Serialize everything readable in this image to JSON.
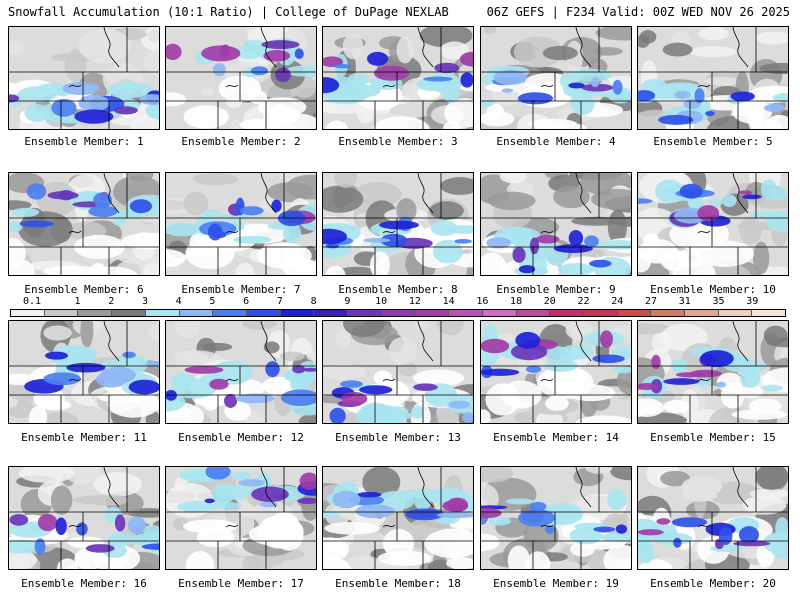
{
  "header": {
    "left_title": "Snowfall Accumulation (10:1 Ratio) | College of DuPage NEXLAB",
    "right_title": "06Z GEFS | F234 Valid: 00Z WED NOV 26 2025"
  },
  "colorbar": {
    "labels": [
      "0.1",
      "1",
      "2",
      "3",
      "4",
      "5",
      "6",
      "7",
      "8",
      "9",
      "10",
      "12",
      "14",
      "16",
      "18",
      "20",
      "22",
      "24",
      "27",
      "31",
      "35",
      "39"
    ],
    "colors": [
      "#f2f2f2",
      "#c9c9c9",
      "#9a9a9a",
      "#7a7a7a",
      "#a8e4ef",
      "#8fb7f5",
      "#4b7ff0",
      "#2f50e8",
      "#1d22d6",
      "#3a1fb8",
      "#6a35b8",
      "#8f3ab0",
      "#a13ca8",
      "#bd52b5",
      "#d36ac4",
      "#c24a9a",
      "#c0306f",
      "#c8325a",
      "#cf4a4a",
      "#d2796a",
      "#e0a994",
      "#f0cfbe",
      "#f9e4d6"
    ]
  },
  "panels": [
    {
      "label": "Ensemble Member: 1",
      "member": 1
    },
    {
      "label": "Ensemble Member: 2",
      "member": 2
    },
    {
      "label": "Ensemble Member: 3",
      "member": 3
    },
    {
      "label": "Ensemble Member: 4",
      "member": 4
    },
    {
      "label": "Ensemble Member: 5",
      "member": 5
    },
    {
      "label": "Ensemble Member: 6",
      "member": 6
    },
    {
      "label": "Ensemble Member: 7",
      "member": 7
    },
    {
      "label": "Ensemble Member: 8",
      "member": 8
    },
    {
      "label": "Ensemble Member: 9",
      "member": 9
    },
    {
      "label": "Ensemble Member: 10",
      "member": 10
    },
    {
      "label": "Ensemble Member: 11",
      "member": 11
    },
    {
      "label": "Ensemble Member: 12",
      "member": 12
    },
    {
      "label": "Ensemble Member: 13",
      "member": 13
    },
    {
      "label": "Ensemble Member: 14",
      "member": 14
    },
    {
      "label": "Ensemble Member: 15",
      "member": 15
    },
    {
      "label": "Ensemble Member: 16",
      "member": 16
    },
    {
      "label": "Ensemble Member: 17",
      "member": 17
    },
    {
      "label": "Ensemble Member: 18",
      "member": 18
    },
    {
      "label": "Ensemble Member: 19",
      "member": 19
    },
    {
      "label": "Ensemble Member: 20",
      "member": 20
    }
  ]
}
